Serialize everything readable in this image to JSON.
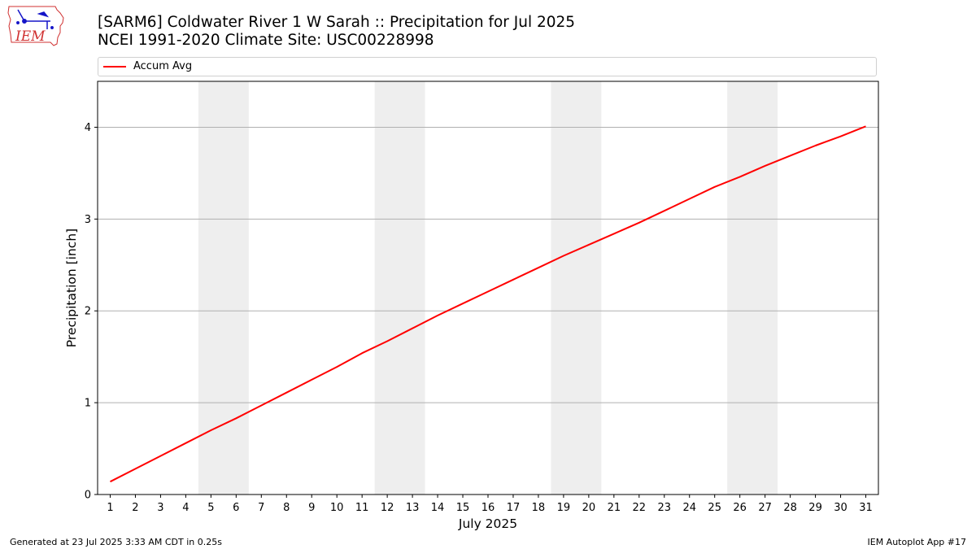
{
  "logo": {
    "text": "IEM"
  },
  "title": {
    "line1": "[SARM6] Coldwater River 1 W Sarah :: Precipitation for Jul 2025",
    "line2": "NCEI 1991-2020 Climate Site: USC00228998"
  },
  "footer": {
    "left": "Generated at 23 Jul 2025 3:33 AM CDT in 0.25s",
    "right": "IEM Autoplot App #17"
  },
  "colors": {
    "series": "#ff0000",
    "weekend_band": "#eeeeee",
    "grid": "#b0b0b0"
  },
  "chart_data": {
    "type": "line",
    "xlabel": "July 2025",
    "ylabel": "Precipitation [inch]",
    "xlim": [
      0.5,
      31.5
    ],
    "ylim": [
      0,
      4.5
    ],
    "yticks": [
      0,
      1,
      2,
      3,
      4
    ],
    "xticks": [
      1,
      2,
      3,
      4,
      5,
      6,
      7,
      8,
      9,
      10,
      11,
      12,
      13,
      14,
      15,
      16,
      17,
      18,
      19,
      20,
      21,
      22,
      23,
      24,
      25,
      26,
      27,
      28,
      29,
      30,
      31
    ],
    "grid": "y",
    "legend": "top",
    "weekend_bands": [
      [
        4.5,
        6.5
      ],
      [
        11.5,
        13.5
      ],
      [
        18.5,
        20.5
      ],
      [
        25.5,
        27.5
      ]
    ],
    "series": [
      {
        "name": "Accum Avg",
        "x": [
          1,
          2,
          3,
          4,
          5,
          6,
          7,
          8,
          9,
          10,
          11,
          12,
          13,
          14,
          15,
          16,
          17,
          18,
          19,
          20,
          21,
          22,
          23,
          24,
          25,
          26,
          27,
          28,
          29,
          30,
          31
        ],
        "values": [
          0.14,
          0.28,
          0.42,
          0.56,
          0.7,
          0.83,
          0.97,
          1.11,
          1.25,
          1.39,
          1.54,
          1.67,
          1.81,
          1.95,
          2.08,
          2.21,
          2.34,
          2.47,
          2.6,
          2.72,
          2.84,
          2.96,
          3.09,
          3.22,
          3.35,
          3.46,
          3.58,
          3.69,
          3.8,
          3.9,
          4.01
        ]
      }
    ]
  }
}
